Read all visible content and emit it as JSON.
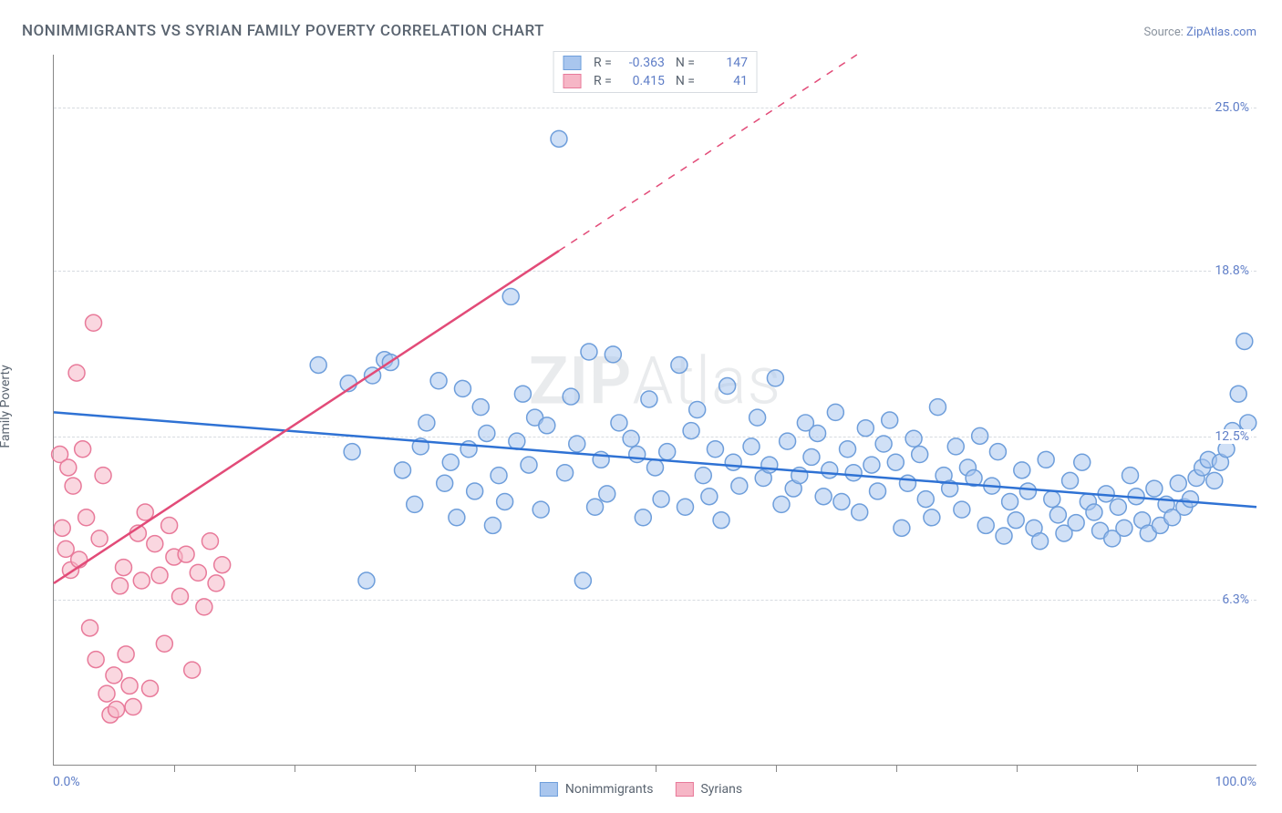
{
  "title": "NONIMMIGRANTS VS SYRIAN FAMILY POVERTY CORRELATION CHART",
  "source_prefix": "Source: ",
  "source_link": "ZipAtlas.com",
  "ylabel": "Family Poverty",
  "watermark_bold": "ZIP",
  "watermark_rest": "Atlas",
  "chart": {
    "type": "scatter",
    "xlim": [
      0,
      100
    ],
    "ylim": [
      0,
      27
    ],
    "yticks": [
      {
        "v": 6.3,
        "label": "6.3%"
      },
      {
        "v": 12.5,
        "label": "12.5%"
      },
      {
        "v": 18.8,
        "label": "18.8%"
      },
      {
        "v": 25.0,
        "label": "25.0%"
      }
    ],
    "xticks_minor": [
      10,
      20,
      30,
      40,
      50,
      60,
      70,
      80,
      90
    ],
    "xlabel_min": "0.0%",
    "xlabel_max": "100.0%",
    "background_color": "#ffffff",
    "grid_color": "#d7dbe0",
    "axis_color": "#888888",
    "marker_radius": 9,
    "marker_stroke_width": 1.5,
    "trend_line_width": 2.5,
    "series": [
      {
        "name": "Nonimmigrants",
        "fill": "#a9c6ee",
        "stroke": "#6e9edb",
        "fill_opacity": 0.55,
        "r_value": "-0.363",
        "n_value": "147",
        "trend": {
          "y_at_x0": 13.4,
          "y_at_x100": 9.8,
          "dashed_after_x": null,
          "color": "#2f72d4"
        },
        "points": [
          [
            22,
            15.2
          ],
          [
            24.5,
            14.5
          ],
          [
            24.8,
            11.9
          ],
          [
            26,
            7
          ],
          [
            26.5,
            14.8
          ],
          [
            27.5,
            15.4
          ],
          [
            28,
            15.3
          ],
          [
            29,
            11.2
          ],
          [
            30,
            9.9
          ],
          [
            30.5,
            12.1
          ],
          [
            31,
            13.0
          ],
          [
            32,
            14.6
          ],
          [
            32.5,
            10.7
          ],
          [
            33,
            11.5
          ],
          [
            33.5,
            9.4
          ],
          [
            34,
            14.3
          ],
          [
            34.5,
            12.0
          ],
          [
            35,
            10.4
          ],
          [
            35.5,
            13.6
          ],
          [
            36,
            12.6
          ],
          [
            36.5,
            9.1
          ],
          [
            37,
            11.0
          ],
          [
            37.5,
            10.0
          ],
          [
            38,
            17.8
          ],
          [
            38.5,
            12.3
          ],
          [
            39,
            14.1
          ],
          [
            39.5,
            11.4
          ],
          [
            40,
            13.2
          ],
          [
            40.5,
            9.7
          ],
          [
            41,
            12.9
          ],
          [
            42,
            23.8
          ],
          [
            42.5,
            11.1
          ],
          [
            43,
            14.0
          ],
          [
            43.5,
            12.2
          ],
          [
            44,
            7.0
          ],
          [
            44.5,
            15.7
          ],
          [
            45,
            9.8
          ],
          [
            45.5,
            11.6
          ],
          [
            46,
            10.3
          ],
          [
            46.5,
            15.6
          ],
          [
            47,
            13.0
          ],
          [
            48,
            12.4
          ],
          [
            48.5,
            11.8
          ],
          [
            49,
            9.4
          ],
          [
            49.5,
            13.9
          ],
          [
            50,
            11.3
          ],
          [
            50.5,
            10.1
          ],
          [
            51,
            11.9
          ],
          [
            52,
            15.2
          ],
          [
            52.5,
            9.8
          ],
          [
            53,
            12.7
          ],
          [
            53.5,
            13.5
          ],
          [
            54,
            11.0
          ],
          [
            54.5,
            10.2
          ],
          [
            55,
            12.0
          ],
          [
            55.5,
            9.3
          ],
          [
            56,
            14.4
          ],
          [
            56.5,
            11.5
          ],
          [
            57,
            10.6
          ],
          [
            58,
            12.1
          ],
          [
            58.5,
            13.2
          ],
          [
            59,
            10.9
          ],
          [
            59.5,
            11.4
          ],
          [
            60,
            14.7
          ],
          [
            60.5,
            9.9
          ],
          [
            61,
            12.3
          ],
          [
            61.5,
            10.5
          ],
          [
            62,
            11.0
          ],
          [
            62.5,
            13.0
          ],
          [
            63,
            11.7
          ],
          [
            63.5,
            12.6
          ],
          [
            64,
            10.2
          ],
          [
            64.5,
            11.2
          ],
          [
            65,
            13.4
          ],
          [
            65.5,
            10.0
          ],
          [
            66,
            12.0
          ],
          [
            66.5,
            11.1
          ],
          [
            67,
            9.6
          ],
          [
            67.5,
            12.8
          ],
          [
            68,
            11.4
          ],
          [
            68.5,
            10.4
          ],
          [
            69,
            12.2
          ],
          [
            69.5,
            13.1
          ],
          [
            70,
            11.5
          ],
          [
            70.5,
            9.0
          ],
          [
            71,
            10.7
          ],
          [
            71.5,
            12.4
          ],
          [
            72,
            11.8
          ],
          [
            72.5,
            10.1
          ],
          [
            73,
            9.4
          ],
          [
            73.5,
            13.6
          ],
          [
            74,
            11.0
          ],
          [
            74.5,
            10.5
          ],
          [
            75,
            12.1
          ],
          [
            75.5,
            9.7
          ],
          [
            76,
            11.3
          ],
          [
            76.5,
            10.9
          ],
          [
            77,
            12.5
          ],
          [
            77.5,
            9.1
          ],
          [
            78,
            10.6
          ],
          [
            78.5,
            11.9
          ],
          [
            79,
            8.7
          ],
          [
            79.5,
            10.0
          ],
          [
            80,
            9.3
          ],
          [
            80.5,
            11.2
          ],
          [
            81,
            10.4
          ],
          [
            81.5,
            9.0
          ],
          [
            82,
            8.5
          ],
          [
            82.5,
            11.6
          ],
          [
            83,
            10.1
          ],
          [
            83.5,
            9.5
          ],
          [
            84,
            8.8
          ],
          [
            84.5,
            10.8
          ],
          [
            85,
            9.2
          ],
          [
            85.5,
            11.5
          ],
          [
            86,
            10.0
          ],
          [
            86.5,
            9.6
          ],
          [
            87,
            8.9
          ],
          [
            87.5,
            10.3
          ],
          [
            88,
            8.6
          ],
          [
            88.5,
            9.8
          ],
          [
            89,
            9.0
          ],
          [
            89.5,
            11.0
          ],
          [
            90,
            10.2
          ],
          [
            90.5,
            9.3
          ],
          [
            91,
            8.8
          ],
          [
            91.5,
            10.5
          ],
          [
            92,
            9.1
          ],
          [
            92.5,
            9.9
          ],
          [
            93,
            9.4
          ],
          [
            93.5,
            10.7
          ],
          [
            94,
            9.8
          ],
          [
            94.5,
            10.1
          ],
          [
            95,
            10.9
          ],
          [
            95.5,
            11.3
          ],
          [
            96,
            11.6
          ],
          [
            96.5,
            10.8
          ],
          [
            97,
            11.5
          ],
          [
            97.5,
            12.0
          ],
          [
            98,
            12.7
          ],
          [
            98.5,
            14.1
          ],
          [
            99,
            16.1
          ],
          [
            99.3,
            13.0
          ]
        ]
      },
      {
        "name": "Syrians",
        "fill": "#f6b6c6",
        "stroke": "#e87a9a",
        "fill_opacity": 0.55,
        "r_value": "0.415",
        "n_value": "41",
        "trend": {
          "y_at_x0": 6.9,
          "y_at_x100": 37.0,
          "dashed_after_x": 42,
          "color": "#e24b78"
        },
        "points": [
          [
            0.5,
            11.8
          ],
          [
            0.7,
            9.0
          ],
          [
            1.0,
            8.2
          ],
          [
            1.2,
            11.3
          ],
          [
            1.4,
            7.4
          ],
          [
            1.6,
            10.6
          ],
          [
            1.9,
            14.9
          ],
          [
            2.1,
            7.8
          ],
          [
            2.4,
            12.0
          ],
          [
            2.7,
            9.4
          ],
          [
            3.0,
            5.2
          ],
          [
            3.3,
            16.8
          ],
          [
            3.5,
            4.0
          ],
          [
            3.8,
            8.6
          ],
          [
            4.1,
            11.0
          ],
          [
            4.4,
            2.7
          ],
          [
            4.7,
            1.9
          ],
          [
            5.0,
            3.4
          ],
          [
            5.2,
            2.1
          ],
          [
            5.5,
            6.8
          ],
          [
            5.8,
            7.5
          ],
          [
            6.0,
            4.2
          ],
          [
            6.3,
            3.0
          ],
          [
            6.6,
            2.2
          ],
          [
            7.0,
            8.8
          ],
          [
            7.3,
            7.0
          ],
          [
            7.6,
            9.6
          ],
          [
            8.0,
            2.9
          ],
          [
            8.4,
            8.4
          ],
          [
            8.8,
            7.2
          ],
          [
            9.2,
            4.6
          ],
          [
            9.6,
            9.1
          ],
          [
            10.0,
            7.9
          ],
          [
            10.5,
            6.4
          ],
          [
            11.0,
            8.0
          ],
          [
            11.5,
            3.6
          ],
          [
            12.0,
            7.3
          ],
          [
            12.5,
            6.0
          ],
          [
            13.0,
            8.5
          ],
          [
            13.5,
            6.9
          ],
          [
            14.0,
            7.6
          ]
        ]
      }
    ]
  },
  "legend_top_labels": {
    "r": "R =",
    "n": "N ="
  }
}
